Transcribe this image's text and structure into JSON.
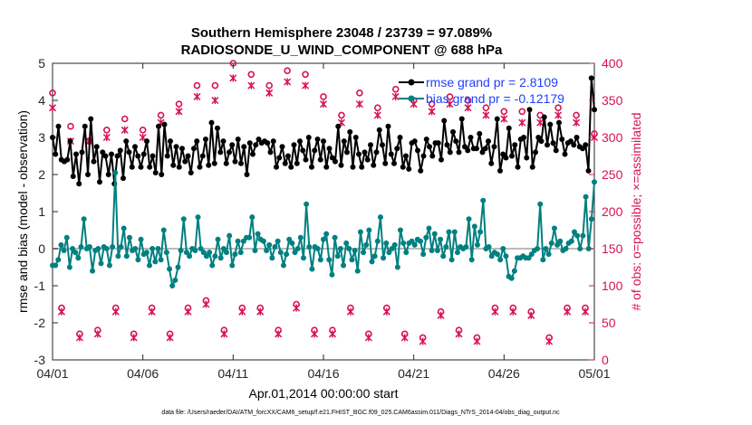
{
  "chart_data": {
    "type": "line",
    "title_line1": "Southern Hemisphere 23048 / 23739 = 97.089%",
    "title_line2": "RADIOSONDE_U_WIND_COMPONENT @ 688 hPa",
    "xlabel": "Apr.01,2014 00:00:00 start",
    "ylabel_left": "rmse and bias (model - observation)",
    "ylabel_right": "# of obs: o=possible; ×=assimilated",
    "footer": "data file: /Users/raeder/DAI/ATM_forcXX/CAM6_setup/f.e21.FHIST_BGC.f09_025.CAM6assim.011/Diags_NTrS_2014-04/obs_diag_output.nc",
    "x_range_days": [
      0,
      30
    ],
    "x_ticks": [
      0,
      5,
      10,
      15,
      20,
      25,
      30
    ],
    "x_tick_labels": [
      "04/01",
      "04/06",
      "04/11",
      "04/16",
      "04/21",
      "04/26",
      "05/01"
    ],
    "ylim_left": [
      -3,
      5
    ],
    "y_ticks_left": [
      -3,
      -2,
      -1,
      0,
      1,
      2,
      3,
      4,
      5
    ],
    "y_tick_labels_left": [
      "-3",
      "-2",
      "-1",
      "0",
      "1",
      "2",
      "3",
      "4",
      "5"
    ],
    "ylim_right": [
      0,
      400
    ],
    "y_ticks_right": [
      0,
      50,
      100,
      150,
      200,
      250,
      300,
      350,
      400
    ],
    "y_tick_labels_right": [
      "0",
      "50",
      "100",
      "150",
      "200",
      "250",
      "300",
      "350",
      "400"
    ],
    "zero_line": 0,
    "legend": [
      {
        "label": "rmse grand pr = 2.8109",
        "color": "#000000"
      },
      {
        "label": "bias grand pr = -0.12179",
        "color": "#008080"
      }
    ],
    "colors": {
      "rmse": "#000000",
      "bias": "#008080",
      "obs": "#d6134f",
      "zero": "#bbbbbb"
    },
    "series": [
      {
        "name": "rmse",
        "axis": "left",
        "color": "#000000",
        "values": [
          3.0,
          2.55,
          3.3,
          2.4,
          2.35,
          2.4,
          2.9,
          1.95,
          2.55,
          1.75,
          2.6,
          3.3,
          2.0,
          3.5,
          2.35,
          2.75,
          1.8,
          2.6,
          2.5,
          2.0,
          2.55,
          1.75,
          2.5,
          2.65,
          1.9,
          2.9,
          2.6,
          2.2,
          2.75,
          2.5,
          2.2,
          2.55,
          2.9,
          2.2,
          2.5,
          2.05,
          3.3,
          2.0,
          3.35,
          2.5,
          2.9,
          2.25,
          2.75,
          2.2,
          2.7,
          2.35,
          2.5,
          2.05,
          2.7,
          2.9,
          2.2,
          2.5,
          2.95,
          2.25,
          3.4,
          2.3,
          3.25,
          2.6,
          2.9,
          2.3,
          2.6,
          2.8,
          2.35,
          2.95,
          2.3,
          2.75,
          2.0,
          2.85,
          2.55,
          2.8,
          2.95,
          2.85,
          2.9,
          2.85,
          2.6,
          2.9,
          2.2,
          2.45,
          2.75,
          2.3,
          2.5,
          2.2,
          2.8,
          2.3,
          2.9,
          2.65,
          2.4,
          3.0,
          2.2,
          2.65,
          2.95,
          2.4,
          2.9,
          2.2,
          2.7,
          2.45,
          2.35,
          3.3,
          2.25,
          2.9,
          2.6,
          3.15,
          2.2,
          3.0,
          2.55,
          2.2,
          2.6,
          2.4,
          2.8,
          2.25,
          2.6,
          3.2,
          2.8,
          2.3,
          3.3,
          2.55,
          2.3,
          2.7,
          3.0,
          2.2,
          2.5,
          2.15,
          2.85,
          2.9,
          2.65,
          2.1,
          2.5,
          2.95,
          2.75,
          2.5,
          2.85,
          2.85,
          2.4,
          3.45,
          2.8,
          2.6,
          3.15,
          2.9,
          2.6,
          3.5,
          2.75,
          2.65,
          3.0,
          2.7,
          2.7,
          3.1,
          2.6,
          2.7,
          2.9,
          2.3,
          2.75,
          3.5,
          2.1,
          2.55,
          2.45,
          3.25,
          2.5,
          2.8,
          2.2,
          2.95,
          3.0,
          2.45,
          3.75,
          2.2,
          2.6,
          3.0,
          2.9,
          3.55,
          2.8,
          3.35,
          2.85,
          2.65,
          3.4,
          2.95,
          2.55,
          2.85,
          2.9,
          2.8,
          3.0,
          2.75,
          2.7,
          2.8,
          2.1,
          4.6,
          3.75
        ]
      },
      {
        "name": "bias",
        "axis": "left",
        "color": "#008080",
        "values": [
          -0.45,
          -0.45,
          -0.3,
          0.1,
          -0.05,
          0.3,
          -0.5,
          0.0,
          -0.1,
          -0.25,
          0.05,
          0.8,
          0.0,
          0.05,
          -0.6,
          -0.05,
          0.0,
          -0.4,
          0.05,
          0.0,
          -0.45,
          0.05,
          2.05,
          -0.2,
          0.05,
          0.55,
          -0.2,
          0.3,
          -0.05,
          0.0,
          -0.3,
          0.25,
          -0.15,
          -0.1,
          -0.45,
          0.0,
          -0.35,
          0.0,
          -0.3,
          0.5,
          -0.1,
          -0.55,
          -1.0,
          -0.85,
          -0.5,
          -0.05,
          0.8,
          -0.1,
          -0.2,
          0.0,
          -0.05,
          0.85,
          0.0,
          -0.1,
          -0.2,
          -0.1,
          -0.45,
          -0.2,
          0.25,
          -0.25,
          0.0,
          -0.1,
          0.35,
          -0.45,
          -0.15,
          0.2,
          -0.1,
          0.2,
          0.3,
          0.3,
          0.85,
          -0.05,
          0.4,
          0.25,
          0.2,
          -0.05,
          0.1,
          -0.25,
          0.05,
          0.2,
          -0.1,
          -0.45,
          -0.15,
          0.25,
          0.15,
          -0.1,
          0.0,
          0.3,
          -0.25,
          1.2,
          0.05,
          -0.55,
          0.05,
          0.0,
          -0.3,
          0.25,
          0.4,
          -0.3,
          -0.7,
          0.3,
          -0.2,
          0.0,
          -0.45,
          0.15,
          0.0,
          -0.3,
          -0.05,
          -0.6,
          0.45,
          -0.1,
          0.1,
          0.5,
          -0.35,
          -0.2,
          0.2,
          0.85,
          -0.25,
          0.15,
          -0.1,
          0.0,
          0.1,
          -0.5,
          0.5,
          0.15,
          -0.1,
          0.15,
          0.2,
          0.1,
          0.25,
          0.2,
          -0.15,
          0.3,
          0.55,
          -0.05,
          0.4,
          -0.05,
          0.25,
          -0.2,
          0.05,
          0.45,
          -0.3,
          0.45,
          -0.1,
          0.05,
          0.0,
          0.05,
          0.8,
          -0.3,
          0.6,
          0.1,
          0.45,
          1.3,
          0.0,
          0.05,
          -0.2,
          -0.1,
          -0.15,
          -0.3,
          0.0,
          -0.2,
          -0.75,
          -0.8,
          -0.6,
          -0.25,
          -0.25,
          -0.2,
          -0.25,
          -0.25,
          -0.15,
          -0.05,
          0.0,
          1.2,
          -0.3,
          0.0,
          -0.15,
          0.15,
          0.55,
          0.1,
          0.2,
          -0.05,
          0.0,
          0.15,
          0.2,
          0.45,
          0.35,
          0.0,
          0.35,
          1.4,
          0.0,
          0.8,
          1.8
        ]
      },
      {
        "name": "possible_obs",
        "axis": "right",
        "marker": "o",
        "color": "#d6134f",
        "x_days": [
          0,
          0.5,
          1,
          1.5,
          2,
          2.5,
          3,
          3.5,
          4,
          4.5,
          5,
          5.5,
          6,
          6.5,
          7,
          7.5,
          8,
          8.5,
          9,
          9.5,
          10,
          10.5,
          11,
          11.5,
          12,
          12.5,
          13,
          13.5,
          14,
          14.5,
          15,
          15.5,
          16,
          16.5,
          17,
          17.5,
          18,
          18.5,
          19,
          19.5,
          20,
          20.5,
          21,
          21.5,
          22,
          22.5,
          23,
          23.5,
          24,
          24.5,
          25,
          25.5,
          26,
          26.5,
          27,
          27.5,
          28,
          28.5,
          29,
          29.5,
          30
        ],
        "values": [
          360,
          70,
          315,
          35,
          295,
          40,
          310,
          70,
          325,
          35,
          310,
          70,
          330,
          35,
          345,
          70,
          370,
          80,
          370,
          40,
          400,
          70,
          385,
          70,
          370,
          40,
          390,
          75,
          385,
          40,
          355,
          40,
          330,
          70,
          360,
          35,
          340,
          70,
          365,
          35,
          350,
          30,
          345,
          65,
          355,
          40,
          350,
          30,
          340,
          70,
          335,
          70,
          335,
          65,
          330,
          30,
          340,
          70,
          330,
          70,
          305
        ]
      },
      {
        "name": "assimilated_obs",
        "axis": "right",
        "marker": "x",
        "color": "#d6134f",
        "x_days": [
          0,
          0.5,
          1,
          1.5,
          2,
          2.5,
          3,
          3.5,
          4,
          4.5,
          5,
          5.5,
          6,
          6.5,
          7,
          7.5,
          8,
          8.5,
          9,
          9.5,
          10,
          10.5,
          11,
          11.5,
          12,
          12.5,
          13,
          13.5,
          14,
          14.5,
          15,
          15.5,
          16,
          16.5,
          17,
          17.5,
          18,
          18.5,
          19,
          19.5,
          20,
          20.5,
          21,
          21.5,
          22,
          22.5,
          23,
          23.5,
          24,
          24.5,
          25,
          25.5,
          26,
          26.5,
          27,
          27.5,
          28,
          28.5,
          29,
          29.5,
          30
        ],
        "values": [
          340,
          65,
          295,
          30,
          295,
          35,
          300,
          65,
          310,
          30,
          300,
          65,
          320,
          30,
          335,
          65,
          355,
          75,
          350,
          35,
          380,
          65,
          370,
          65,
          360,
          35,
          375,
          70,
          370,
          35,
          345,
          35,
          320,
          65,
          345,
          30,
          330,
          65,
          355,
          30,
          345,
          25,
          335,
          60,
          345,
          35,
          340,
          25,
          330,
          65,
          325,
          65,
          320,
          60,
          320,
          25,
          330,
          65,
          320,
          65,
          300
        ]
      }
    ]
  }
}
